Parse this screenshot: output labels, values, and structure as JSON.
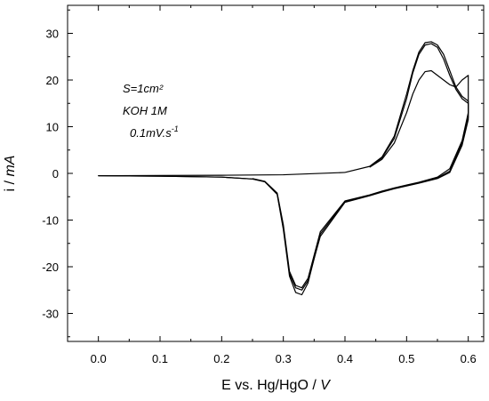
{
  "chart_data": {
    "type": "line",
    "xlabel_main": "E vs. Hg/HgO / ",
    "xlabel_unit": "V",
    "ylabel_main": "i / ",
    "ylabel_unit": "mA",
    "xlim": [
      -0.05,
      0.625
    ],
    "ylim": [
      -36,
      36
    ],
    "x_ticks": [
      0.0,
      0.1,
      0.2,
      0.3,
      0.4,
      0.5,
      0.6
    ],
    "x_tick_labels": [
      "0.0",
      "0.1",
      "0.2",
      "0.3",
      "0.4",
      "0.5",
      "0.6"
    ],
    "y_ticks": [
      -30,
      -20,
      -10,
      0,
      10,
      20,
      30
    ],
    "y_tick_labels": [
      "-30",
      "-20",
      "-10",
      "0",
      "10",
      "20",
      "30"
    ],
    "grid": false,
    "annotations": {
      "area": "S=1cm²",
      "electrolyte": "KOH 1M",
      "scan_rate_main": "0.1mV.s",
      "scan_rate_exp": "-1"
    },
    "series": [
      {
        "x": [
          0.4,
          0.44,
          0.46,
          0.48,
          0.5,
          0.51,
          0.52,
          0.53,
          0.54,
          0.55,
          0.56,
          0.57,
          0.58,
          0.59,
          0.6,
          0.6,
          0.59,
          0.57,
          0.55,
          0.52,
          0.5,
          0.48,
          0.46,
          0.44,
          0.4,
          0.36,
          0.34,
          0.33,
          0.32,
          0.31,
          0.3,
          0.29,
          0.27,
          0.25,
          0.2,
          0.1,
          0.0
        ],
        "y": [
          0.2,
          1.5,
          3.5,
          8.0,
          17.0,
          22.0,
          26.0,
          28.0,
          28.2,
          27.5,
          25.5,
          22.0,
          18.5,
          16.5,
          15.5,
          12.0,
          6.5,
          0.5,
          -1.0,
          -2.0,
          -2.6,
          -3.2,
          -3.9,
          -4.7,
          -6.0,
          -13.0,
          -23.5,
          -26.0,
          -25.5,
          -22.0,
          -12.0,
          -4.5,
          -1.8,
          -1.2,
          -0.8,
          -0.6,
          -0.5
        ]
      },
      {
        "x": [
          0.44,
          0.46,
          0.48,
          0.5,
          0.51,
          0.52,
          0.53,
          0.54,
          0.55,
          0.56,
          0.57,
          0.58,
          0.59,
          0.6,
          0.6,
          0.59,
          0.57,
          0.55,
          0.52,
          0.5,
          0.48,
          0.46,
          0.44,
          0.4,
          0.36,
          0.34,
          0.33,
          0.32,
          0.31,
          0.3,
          0.29,
          0.27,
          0.25,
          0.2,
          0.1,
          0.0,
          0.1,
          0.2,
          0.3,
          0.4
        ],
        "y": [
          1.4,
          3.3,
          7.5,
          16.0,
          21.5,
          25.5,
          27.5,
          27.8,
          27.0,
          24.5,
          21.0,
          18.0,
          16.0,
          15.0,
          11.5,
          6.0,
          0.2,
          -1.1,
          -2.1,
          -2.7,
          -3.3,
          -4.0,
          -4.8,
          -6.2,
          -13.5,
          -23.0,
          -25.0,
          -24.5,
          -21.5,
          -11.5,
          -4.3,
          -1.8,
          -1.2,
          -0.8,
          -0.6,
          -0.5,
          -0.45,
          -0.4,
          -0.3,
          0.2
        ]
      },
      {
        "x": [
          0.44,
          0.46,
          0.48,
          0.5,
          0.51,
          0.52,
          0.53,
          0.54,
          0.55,
          0.56,
          0.57,
          0.58,
          0.59,
          0.6,
          0.6,
          0.59,
          0.57,
          0.55,
          0.52,
          0.5,
          0.48,
          0.46,
          0.44,
          0.4,
          0.36,
          0.34,
          0.33,
          0.32,
          0.31,
          0.3,
          0.29,
          0.27,
          0.25
        ],
        "y": [
          1.3,
          3.0,
          6.5,
          13.0,
          17.0,
          20.0,
          21.8,
          22.0,
          21.0,
          20.0,
          19.0,
          18.5,
          20.0,
          21.0,
          13.0,
          7.0,
          1.0,
          -0.8,
          -1.9,
          -2.5,
          -3.1,
          -3.8,
          -4.6,
          -5.9,
          -12.5,
          -22.5,
          -24.5,
          -24.0,
          -21.0,
          -11.0,
          -4.2,
          -1.7,
          -1.1
        ]
      }
    ]
  }
}
